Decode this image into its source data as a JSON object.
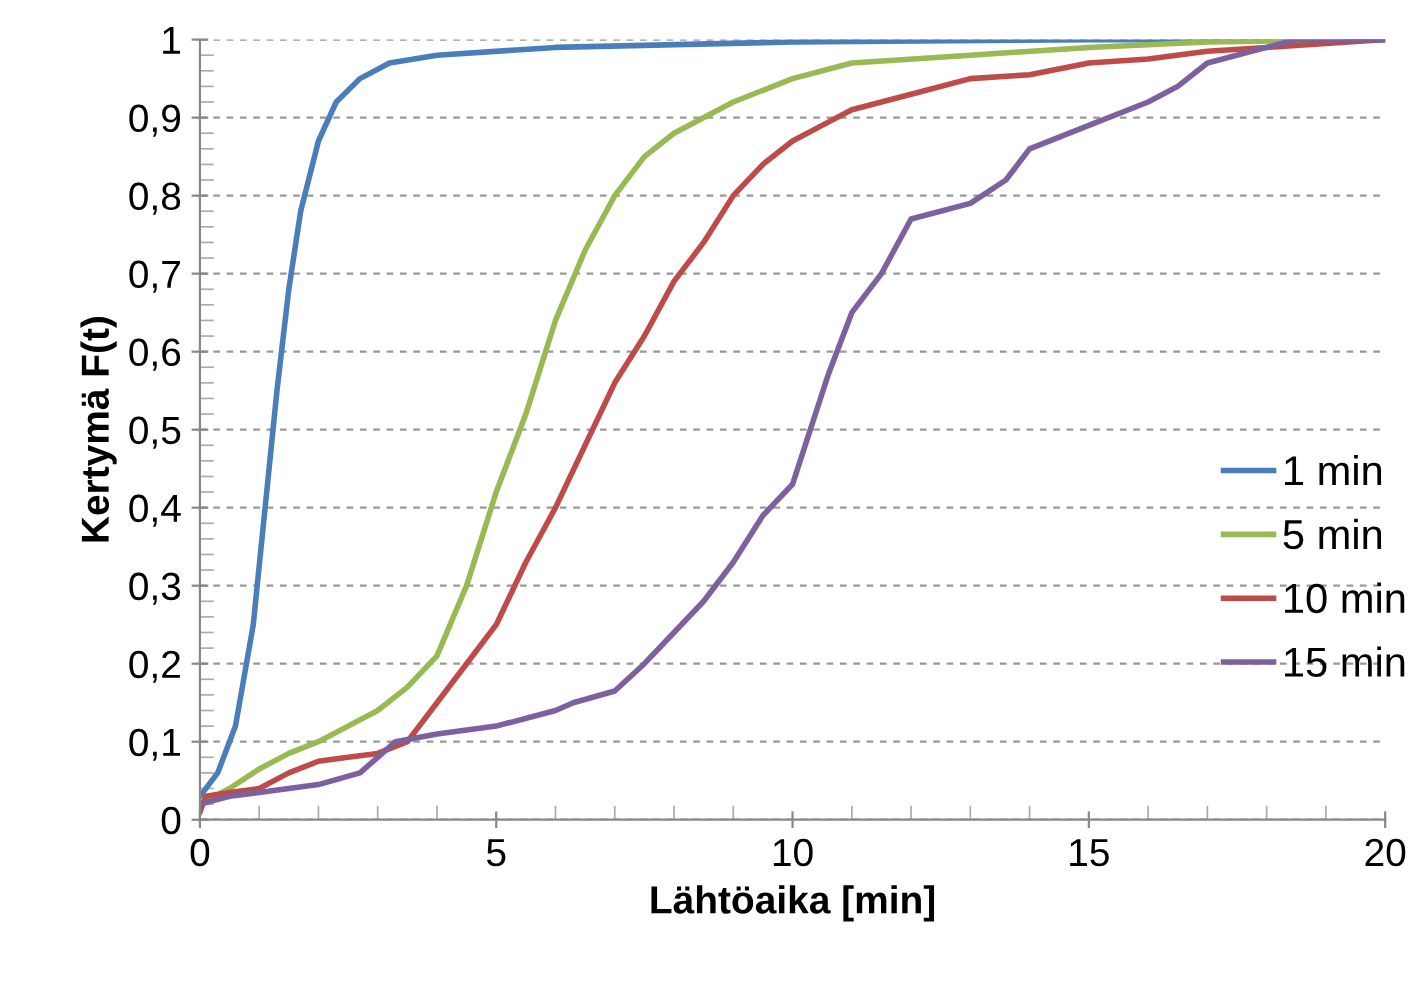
{
  "chart_data": {
    "type": "line",
    "xlabel": "Lähtöaika [min]",
    "ylabel": "Kertymä F(t)",
    "xlim": [
      0,
      20
    ],
    "xticks": [
      0,
      5,
      10,
      15,
      20
    ],
    "ylim": [
      0,
      1
    ],
    "yticks": [
      0,
      {
        "value": 0.1,
        "label": "0,1"
      },
      {
        "value": 0.2,
        "label": "0,2"
      },
      {
        "value": 0.3,
        "label": "0,3"
      },
      {
        "value": 0.4,
        "label": "0,4"
      },
      {
        "value": 0.5,
        "label": "0,5"
      },
      {
        "value": 0.6,
        "label": "0,6"
      },
      {
        "value": 0.7,
        "label": "0,7"
      },
      {
        "value": 0.8,
        "label": "0,8"
      },
      {
        "value": 0.9,
        "label": "0,9"
      },
      1
    ],
    "grid": "y",
    "legend": "right",
    "marker": "none",
    "line_style": "solid",
    "series": [
      {
        "name": "1 min",
        "color": "#4a7ebb",
        "x": [
          0,
          0.3,
          0.6,
          0.9,
          1.1,
          1.3,
          1.5,
          1.7,
          2.0,
          2.3,
          2.7,
          3.2,
          4,
          6,
          10,
          15,
          20
        ],
        "values": [
          0.03,
          0.06,
          0.12,
          0.25,
          0.4,
          0.55,
          0.68,
          0.78,
          0.87,
          0.92,
          0.95,
          0.97,
          0.98,
          0.99,
          0.997,
          1,
          1
        ]
      },
      {
        "name": "5 min",
        "color": "#98b954",
        "x": [
          0,
          0.5,
          1,
          1.5,
          2,
          2.5,
          3,
          3.5,
          4,
          4.5,
          5,
          5.5,
          6,
          6.5,
          7,
          7.5,
          8,
          9,
          10,
          11,
          13,
          15,
          17,
          20
        ],
        "values": [
          0.02,
          0.04,
          0.065,
          0.085,
          0.1,
          0.12,
          0.14,
          0.17,
          0.21,
          0.3,
          0.42,
          0.52,
          0.64,
          0.73,
          0.8,
          0.85,
          0.88,
          0.92,
          0.95,
          0.97,
          0.98,
          0.99,
          0.997,
          1
        ]
      },
      {
        "name": "10 min",
        "color": "#be4b48",
        "x": [
          0,
          0.1,
          0.5,
          1,
          1.5,
          2,
          2.5,
          3,
          3.5,
          4,
          4.5,
          5,
          5.5,
          6,
          6.5,
          7,
          7.5,
          8,
          8.5,
          9,
          9.5,
          10,
          10.5,
          11,
          12,
          13,
          14,
          15,
          16,
          17,
          18,
          20
        ],
        "values": [
          0.01,
          0.03,
          0.035,
          0.04,
          0.06,
          0.075,
          0.08,
          0.085,
          0.1,
          0.15,
          0.2,
          0.25,
          0.33,
          0.4,
          0.48,
          0.56,
          0.62,
          0.69,
          0.74,
          0.8,
          0.84,
          0.87,
          0.89,
          0.91,
          0.93,
          0.95,
          0.955,
          0.97,
          0.975,
          0.985,
          0.99,
          1
        ]
      },
      {
        "name": "15 min",
        "color": "#7d60a0",
        "x": [
          0,
          0.5,
          1,
          2,
          2.7,
          3,
          3.3,
          4,
          5,
          6,
          6.3,
          7,
          7.5,
          8,
          8.5,
          9,
          9.5,
          10,
          10.3,
          10.6,
          11,
          11.5,
          12,
          13,
          13.6,
          14,
          15,
          16,
          16.5,
          17,
          18,
          18.5,
          20
        ],
        "values": [
          0.02,
          0.03,
          0.035,
          0.045,
          0.06,
          0.08,
          0.1,
          0.11,
          0.12,
          0.14,
          0.15,
          0.165,
          0.2,
          0.24,
          0.28,
          0.33,
          0.39,
          0.43,
          0.5,
          0.57,
          0.65,
          0.7,
          0.77,
          0.79,
          0.82,
          0.86,
          0.89,
          0.92,
          0.94,
          0.97,
          0.99,
          1,
          1
        ]
      }
    ]
  }
}
